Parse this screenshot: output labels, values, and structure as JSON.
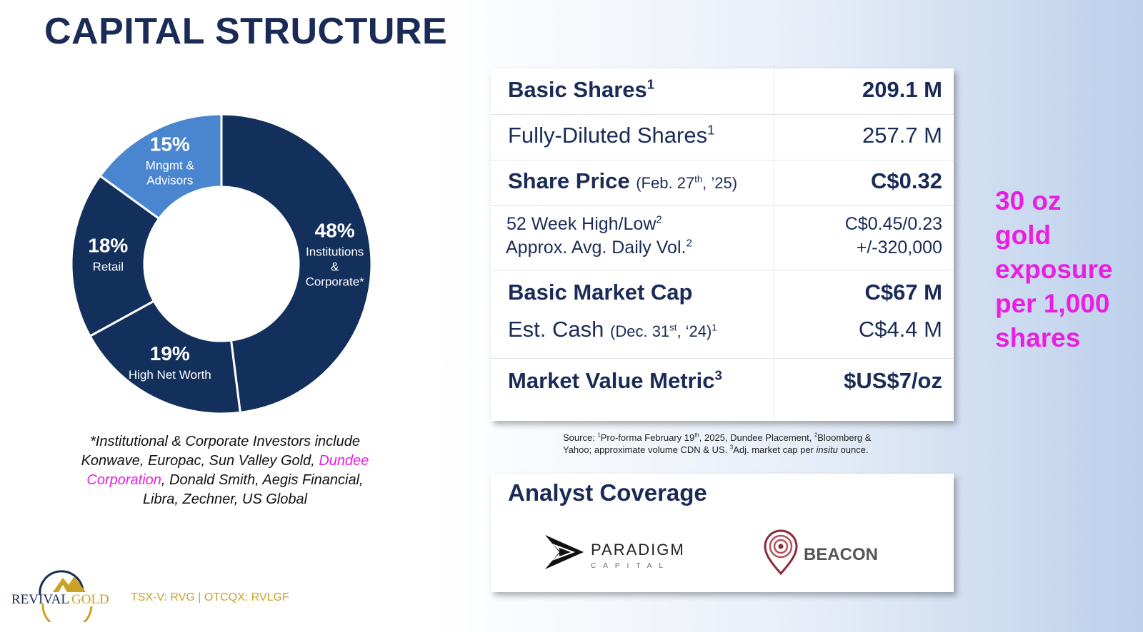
{
  "page_title": "CAPITAL STRUCTURE",
  "chart_data": {
    "type": "pie",
    "slices": [
      {
        "label_top": "48%",
        "label_lines": [
          "Institutions",
          "&",
          "Corporate*"
        ],
        "value": 48,
        "color": "#13305c"
      },
      {
        "label_top": "19%",
        "label_lines": [
          "High Net Worth"
        ],
        "value": 19,
        "color": "#13305c"
      },
      {
        "label_top": "18%",
        "label_lines": [
          "Retail"
        ],
        "value": 18,
        "color": "#13305c"
      },
      {
        "label_top": "15%",
        "label_lines": [
          "Mngmt &",
          "Advisors"
        ],
        "value": 15,
        "color": "#4a86d0"
      }
    ]
  },
  "investors_note": {
    "before": "*Institutional & Corporate Investors include Konwave, Europac, Sun Valley Gold, ",
    "highlight": "Dundee Corporation",
    "after": ", Donald Smith, Aegis Financial, Libra, Zechner, US Global"
  },
  "stats": {
    "basic_shares": {
      "label": "Basic Shares",
      "sup": "1",
      "value": "209.1 M"
    },
    "fd_shares": {
      "label": "Fully-Diluted Shares",
      "sup": "1",
      "value": "257.7 M"
    },
    "share_price": {
      "label": "Share Price",
      "date_pre": "(Feb. 27",
      "date_sup": "th",
      "date_post": ", ’25)",
      "value": "C$0.32"
    },
    "high_low": {
      "label": "52 Week High/Low",
      "sup": "2",
      "value": "C$0.45/0.23"
    },
    "avg_vol": {
      "label": "Approx. Avg. Daily Vol.",
      "sup": "2",
      "value": "+/-320,000"
    },
    "market_cap": {
      "label": "Basic Market Cap",
      "value": "C$67 M"
    },
    "cash": {
      "label": "Est. Cash",
      "date_pre": "(Dec. 31",
      "date_sup": "st",
      "date_post": ", ‘24)",
      "sup": "1",
      "value": "C$4.4 M"
    },
    "mvm": {
      "label": "Market Value Metric",
      "sup": "3",
      "value": "$US$7/oz"
    }
  },
  "source": {
    "prefix": "Source: ",
    "s1": "1",
    "t1": "Pro-forma February 19",
    "s_th": "th",
    "t2": ", 2025, Dundee Placement, ",
    "s2": "2",
    "t3": "Bloomberg & Yahoo; approximate volume CDN & US. ",
    "s3": "3",
    "t4": "Adj.  market cap per ",
    "t5": "insitu",
    "t6": " ounce."
  },
  "analyst": {
    "title": "Analyst Coverage",
    "paradigm_top": "PARADIGM",
    "paradigm_bottom": "CAPITAL",
    "beacon": "BEACON"
  },
  "callout": [
    "30 oz",
    "gold",
    "exposure",
    "per 1,000",
    "shares"
  ],
  "brand": {
    "revival": "REVIVAL",
    "gold": "GOLD"
  },
  "ticker": "TSX-V: RVG | OTCQX: RVLGF",
  "colors": {
    "navy": "#13305c",
    "light_blue": "#4a86d0",
    "magenta": "#e81fe0",
    "gold": "#c9a227"
  }
}
